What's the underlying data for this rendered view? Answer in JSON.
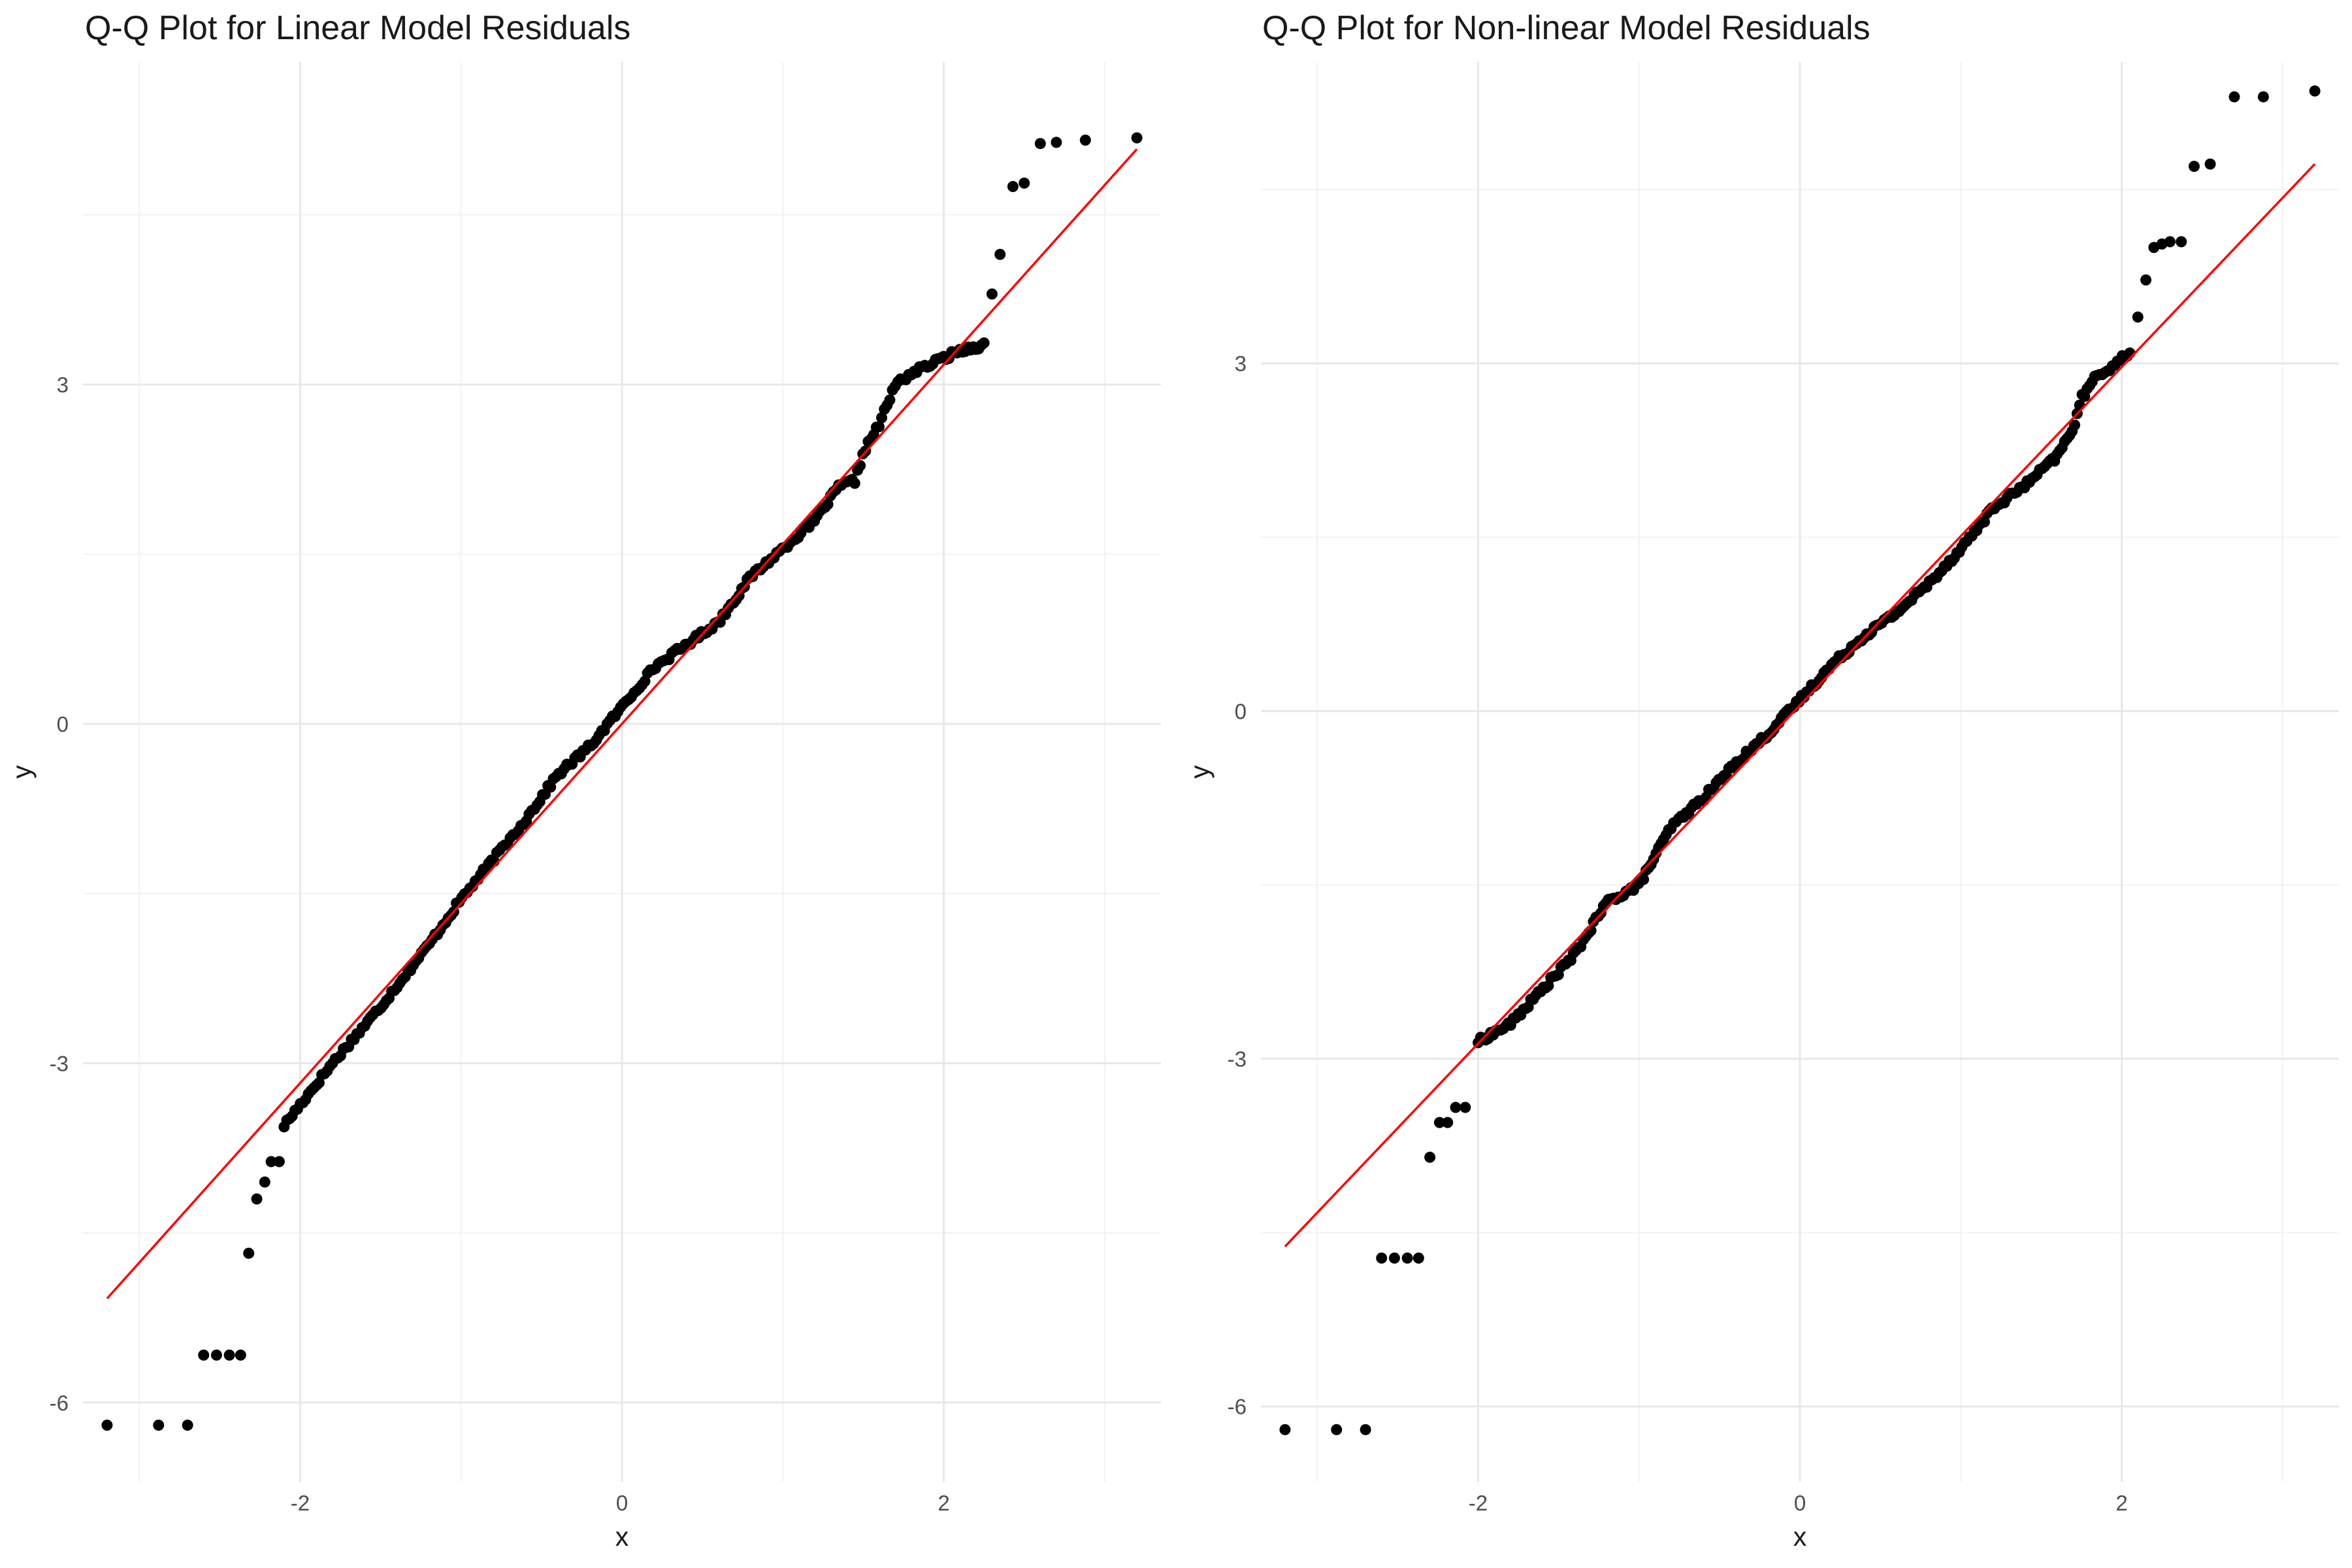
{
  "chart_data": [
    {
      "type": "scatter",
      "title": "Q-Q Plot for Linear Model Residuals",
      "xlabel": "x",
      "ylabel": "y",
      "xlim": [
        -3.35,
        3.35
      ],
      "ylim": [
        -6.7,
        5.85
      ],
      "x_ticks": [
        -2,
        0,
        2
      ],
      "x_tick_labels": [
        "-2",
        "0",
        "2"
      ],
      "y_ticks": [
        -6,
        -3,
        0,
        3
      ],
      "y_tick_labels": [
        "-6",
        "-3",
        "0",
        "3"
      ],
      "grid": true,
      "legend": "none",
      "colors": {
        "points": "#000000",
        "reference_line": "#ff0000"
      },
      "reference_line": {
        "x": [
          -3.2,
          3.2
        ],
        "y": [
          -5.08,
          5.08
        ]
      },
      "quantile_curve": [
        [
          -2.1,
          -3.55
        ],
        [
          -1.8,
          -3.0
        ],
        [
          -1.5,
          -2.5
        ],
        [
          -1.2,
          -1.95
        ],
        [
          -1.0,
          -1.55
        ],
        [
          -0.8,
          -1.2
        ],
        [
          -0.6,
          -0.85
        ],
        [
          -0.4,
          -0.45
        ],
        [
          -0.2,
          -0.2
        ],
        [
          0.0,
          0.15
        ],
        [
          0.2,
          0.5
        ],
        [
          0.4,
          0.7
        ],
        [
          0.6,
          0.9
        ],
        [
          0.8,
          1.3
        ],
        [
          1.0,
          1.55
        ],
        [
          1.2,
          1.8
        ],
        [
          1.35,
          2.1
        ],
        [
          1.45,
          2.15
        ],
        [
          1.5,
          2.4
        ],
        [
          1.6,
          2.65
        ],
        [
          1.7,
          3.0
        ],
        [
          1.8,
          3.1
        ],
        [
          1.95,
          3.2
        ],
        [
          2.1,
          3.3
        ],
        [
          2.25,
          3.35
        ]
      ],
      "tail_points": [
        [
          -3.2,
          -6.2
        ],
        [
          -2.88,
          -6.2
        ],
        [
          -2.7,
          -6.2
        ],
        [
          -2.6,
          -5.58
        ],
        [
          -2.52,
          -5.58
        ],
        [
          -2.44,
          -5.58
        ],
        [
          -2.37,
          -5.58
        ],
        [
          -2.32,
          -4.68
        ],
        [
          -2.27,
          -4.2
        ],
        [
          -2.22,
          -4.05
        ],
        [
          -2.18,
          -3.87
        ],
        [
          -2.13,
          -3.87
        ],
        [
          2.3,
          3.8
        ],
        [
          2.35,
          4.15
        ],
        [
          2.43,
          4.75
        ],
        [
          2.5,
          4.78
        ],
        [
          2.6,
          5.13
        ],
        [
          2.7,
          5.14
        ],
        [
          2.88,
          5.16
        ],
        [
          3.2,
          5.18
        ]
      ]
    },
    {
      "type": "scatter",
      "title": "Q-Q Plot for Non-linear Model Residuals",
      "xlabel": "x",
      "ylabel": "y",
      "xlim": [
        -3.35,
        3.35
      ],
      "ylim": [
        -6.65,
        5.6
      ],
      "x_ticks": [
        -2,
        0,
        2
      ],
      "x_tick_labels": [
        "-2",
        "0",
        "2"
      ],
      "y_ticks": [
        -6,
        -3,
        0,
        3
      ],
      "y_tick_labels": [
        "-6",
        "-3",
        "0",
        "3"
      ],
      "grid": true,
      "legend": "none",
      "colors": {
        "points": "#000000",
        "reference_line": "#ff0000"
      },
      "reference_line": {
        "x": [
          -3.2,
          3.2
        ],
        "y": [
          -4.62,
          4.72
        ]
      },
      "quantile_curve": [
        [
          -2.0,
          -2.85
        ],
        [
          -1.8,
          -2.7
        ],
        [
          -1.6,
          -2.4
        ],
        [
          -1.4,
          -2.1
        ],
        [
          -1.2,
          -1.65
        ],
        [
          -1.0,
          -1.5
        ],
        [
          -0.8,
          -1.0
        ],
        [
          -0.6,
          -0.75
        ],
        [
          -0.4,
          -0.45
        ],
        [
          -0.2,
          -0.2
        ],
        [
          0.0,
          0.1
        ],
        [
          0.2,
          0.4
        ],
        [
          0.4,
          0.65
        ],
        [
          0.6,
          0.85
        ],
        [
          0.8,
          1.1
        ],
        [
          1.0,
          1.4
        ],
        [
          1.2,
          1.75
        ],
        [
          1.4,
          1.95
        ],
        [
          1.6,
          2.2
        ],
        [
          1.7,
          2.45
        ],
        [
          1.75,
          2.7
        ],
        [
          1.85,
          2.9
        ],
        [
          1.95,
          2.98
        ],
        [
          2.05,
          3.1
        ]
      ],
      "tail_points": [
        [
          -3.2,
          -6.2
        ],
        [
          -2.88,
          -6.2
        ],
        [
          -2.7,
          -6.2
        ],
        [
          -2.6,
          -4.72
        ],
        [
          -2.52,
          -4.72
        ],
        [
          -2.44,
          -4.72
        ],
        [
          -2.37,
          -4.72
        ],
        [
          -2.3,
          -3.85
        ],
        [
          -2.24,
          -3.55
        ],
        [
          -2.19,
          -3.55
        ],
        [
          -2.14,
          -3.42
        ],
        [
          -2.08,
          -3.42
        ],
        [
          2.1,
          3.4
        ],
        [
          2.15,
          3.72
        ],
        [
          2.2,
          4.0
        ],
        [
          2.25,
          4.03
        ],
        [
          2.3,
          4.05
        ],
        [
          2.37,
          4.05
        ],
        [
          2.45,
          4.7
        ],
        [
          2.55,
          4.72
        ],
        [
          2.7,
          5.3
        ],
        [
          2.88,
          5.3
        ],
        [
          3.2,
          5.35
        ]
      ]
    }
  ]
}
